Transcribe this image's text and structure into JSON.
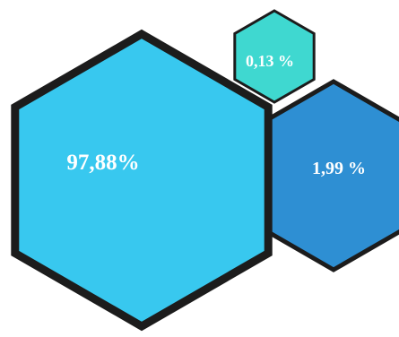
{
  "chart_data": {
    "type": "hexagon-bubble",
    "title": "",
    "series": [
      {
        "label": "97,88%",
        "value": 97.88,
        "color": "#38c8ef"
      },
      {
        "label": "1,99 %",
        "value": 1.99,
        "color": "#2e8fd3"
      },
      {
        "label": "0,13 %",
        "value": 0.13,
        "color": "#3fd8d0"
      }
    ],
    "stroke_color": "#1c1c1c"
  }
}
